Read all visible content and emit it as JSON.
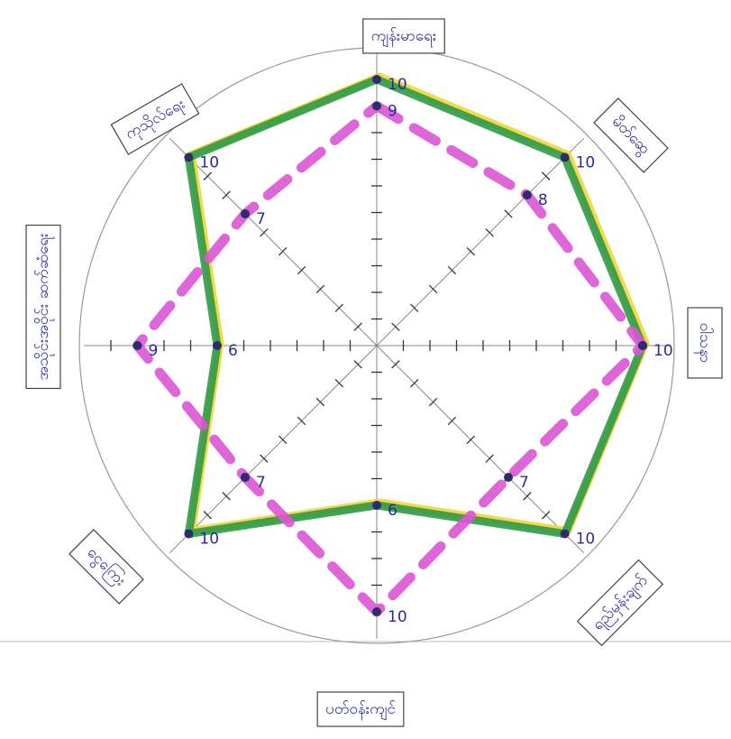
{
  "chart_data": {
    "type": "radar",
    "categories": [
      "ကျန်းမာရေး",
      "မိတ်ဆွေ",
      "ဝါသနာ",
      "ရည်မှန်းချက်",
      "ပတ်ဝန်းကျင်",
      "ငွေကြေး",
      "အသိုင်းအဝိုင်း ဆက်ဆံရေး",
      "ကုသိုလ်ရေး"
    ],
    "rlim": [
      0,
      10
    ],
    "rticks": [
      1,
      2,
      3,
      4,
      5,
      6,
      7,
      8,
      9,
      10
    ],
    "series": [
      {
        "color": "#f3d539",
        "values": [
          10,
          10,
          10,
          10,
          6,
          10,
          6,
          10
        ]
      },
      {
        "color": "#2f9a48",
        "values": [
          10,
          10,
          10,
          10,
          6,
          10,
          6,
          10
        ]
      },
      {
        "color": "#dc55d4",
        "dashed": true,
        "values": [
          9,
          8,
          10,
          7,
          10,
          7,
          9,
          7
        ]
      }
    ]
  }
}
